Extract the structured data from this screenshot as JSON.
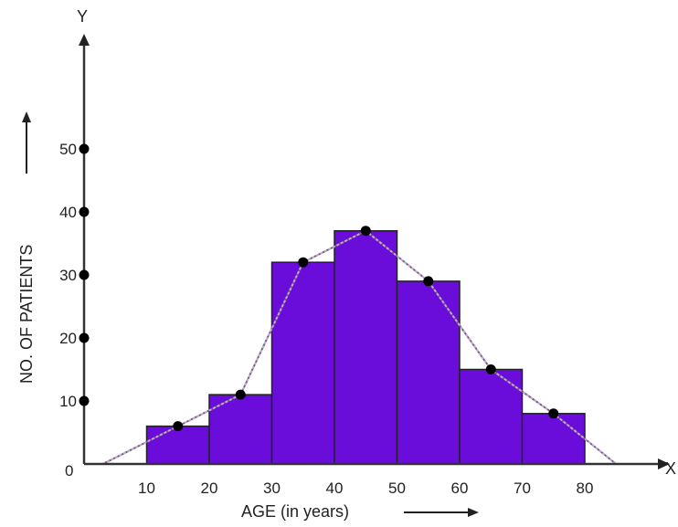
{
  "chart_data": {
    "type": "bar",
    "subtype": "histogram-with-frequency-polygon",
    "title": "",
    "xlabel": "AGE (in years)",
    "ylabel": "NO. OF PATIENTS",
    "x_axis_letter": "X",
    "y_axis_letter": "Y",
    "origin_label": "0",
    "x_ticks": [
      10,
      20,
      30,
      40,
      50,
      60,
      70,
      80
    ],
    "y_ticks": [
      10,
      20,
      30,
      40,
      50
    ],
    "xlim": [
      0,
      93
    ],
    "ylim": [
      0,
      68
    ],
    "bins": [
      {
        "from": 10,
        "to": 20,
        "value": 6
      },
      {
        "from": 20,
        "to": 30,
        "value": 11
      },
      {
        "from": 30,
        "to": 40,
        "value": 32
      },
      {
        "from": 40,
        "to": 50,
        "value": 37
      },
      {
        "from": 50,
        "to": 60,
        "value": 29
      },
      {
        "from": 60,
        "to": 70,
        "value": 15
      },
      {
        "from": 70,
        "to": 80,
        "value": 8
      }
    ],
    "polygon_points": [
      {
        "x": 3,
        "y": 0
      },
      {
        "x": 15,
        "y": 6
      },
      {
        "x": 25,
        "y": 11
      },
      {
        "x": 35,
        "y": 32
      },
      {
        "x": 45,
        "y": 37
      },
      {
        "x": 55,
        "y": 29
      },
      {
        "x": 65,
        "y": 15
      },
      {
        "x": 75,
        "y": 8
      },
      {
        "x": 85,
        "y": 0
      }
    ],
    "grid": false,
    "colors": {
      "bar_fill": "#6a0ddb",
      "bar_stroke": "#222222",
      "polygon_line": "#666666",
      "polygon_highlight": "#d9a8f0",
      "point": "#000000",
      "axis": "#333333"
    }
  }
}
